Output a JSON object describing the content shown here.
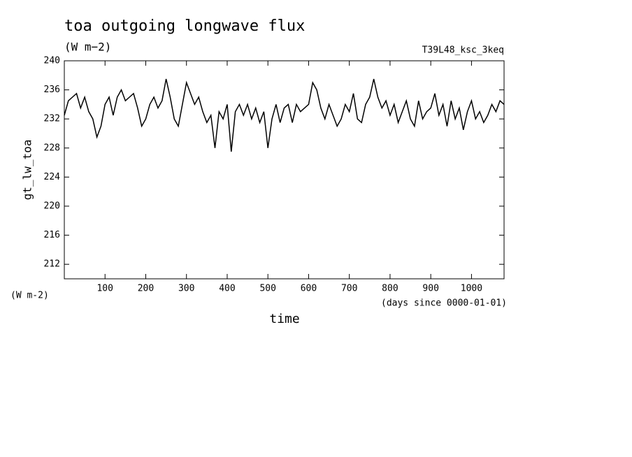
{
  "chart_data": {
    "type": "line",
    "title": "toa outgoing longwave flux",
    "subtitle": "(W m−2)",
    "run_label": "T39L48_ksc_3keq",
    "y_label": "gt_lw_toa",
    "y_unit": "(W m-2)",
    "x_unit": "(days since 0000-01-01)",
    "x_label": "time",
    "xlim": [
      0,
      1080
    ],
    "xticks": [
      100,
      200,
      300,
      400,
      500,
      600,
      700,
      800,
      900,
      1000
    ],
    "ylim": [
      210,
      240
    ],
    "yticks": [
      212,
      216,
      220,
      224,
      228,
      232,
      236,
      240
    ],
    "series": [
      {
        "name": "gt_lw_toa",
        "color": "#000000",
        "x": [
          0,
          10,
          20,
          30,
          40,
          50,
          60,
          70,
          80,
          90,
          100,
          110,
          120,
          130,
          140,
          150,
          160,
          170,
          180,
          190,
          200,
          210,
          220,
          230,
          240,
          250,
          260,
          270,
          280,
          290,
          300,
          310,
          320,
          330,
          340,
          350,
          360,
          370,
          380,
          390,
          400,
          410,
          420,
          430,
          440,
          450,
          460,
          470,
          480,
          490,
          500,
          510,
          520,
          530,
          540,
          550,
          560,
          570,
          580,
          590,
          600,
          610,
          620,
          630,
          640,
          650,
          660,
          670,
          680,
          690,
          700,
          710,
          720,
          730,
          740,
          750,
          760,
          770,
          780,
          790,
          800,
          810,
          820,
          830,
          840,
          850,
          860,
          870,
          880,
          890,
          900,
          910,
          920,
          930,
          940,
          950,
          960,
          970,
          980,
          990,
          1000,
          1010,
          1020,
          1030,
          1040,
          1050,
          1060,
          1070,
          1080
        ],
        "values": [
          232.5,
          234.5,
          235,
          235.5,
          233.5,
          235,
          233,
          232,
          229.5,
          231,
          234,
          235,
          232.5,
          235,
          236,
          234.5,
          235,
          235.5,
          233.5,
          231,
          232,
          234,
          235,
          233.5,
          234.5,
          237.5,
          235,
          232,
          231,
          234,
          237,
          235.5,
          234,
          235,
          233,
          231.5,
          232.5,
          228,
          233,
          232,
          234,
          227.5,
          233,
          234,
          232.5,
          234,
          232,
          233.5,
          231.5,
          233,
          228,
          232,
          234,
          231.5,
          233.5,
          234,
          231.5,
          234,
          233,
          233.5,
          234,
          237,
          236,
          233.5,
          232,
          234,
          232.5,
          231,
          232,
          234,
          233,
          235.5,
          232,
          231.5,
          234,
          235,
          237.5,
          235,
          233.5,
          234.5,
          232.5,
          234,
          231.5,
          233,
          234.5,
          232,
          231,
          234.5,
          232,
          233,
          233.5,
          235.5,
          232.5,
          234,
          231,
          234.5,
          232,
          233.5,
          230.5,
          233,
          234.5,
          232,
          233,
          231.5,
          232.5,
          234,
          233,
          234.5,
          234
        ]
      }
    ]
  }
}
